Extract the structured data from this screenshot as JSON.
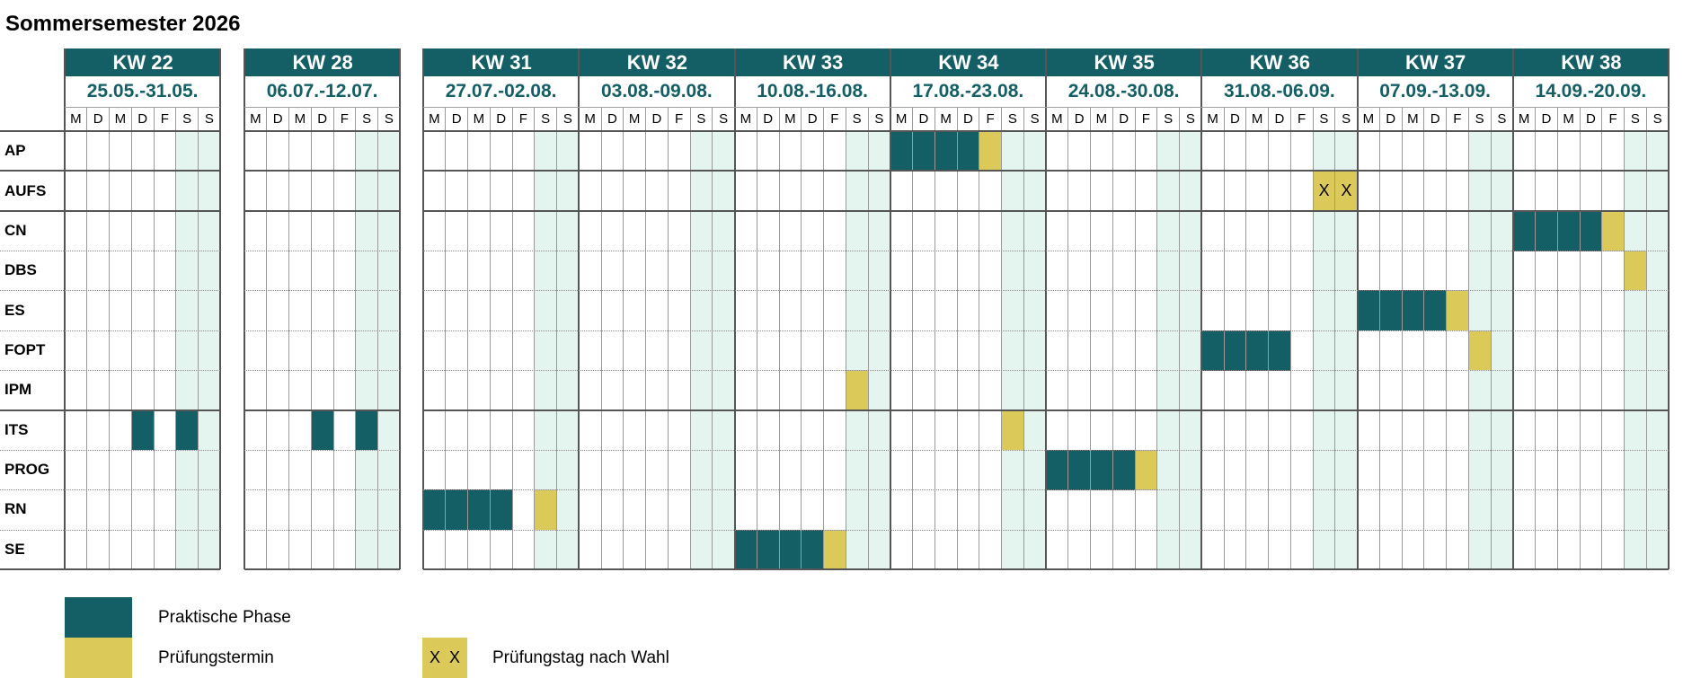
{
  "title": "Sommersemester 2026",
  "colors": {
    "praktisch": "#145f65",
    "pruefung": "#dbc95a",
    "weekend": "#e4f5ef",
    "header": "#145f65"
  },
  "day_labels": [
    "M",
    "D",
    "M",
    "D",
    "F",
    "S",
    "S"
  ],
  "weeks": [
    {
      "kw": "KW 22",
      "dates": "25.05.-31.05."
    },
    {
      "kw": "KW 28",
      "dates": "06.07.-12.07."
    },
    {
      "kw": "KW 31",
      "dates": "27.07.-02.08."
    },
    {
      "kw": "KW 32",
      "dates": "03.08.-09.08."
    },
    {
      "kw": "KW 33",
      "dates": "10.08.-16.08."
    },
    {
      "kw": "KW 34",
      "dates": "17.08.-23.08."
    },
    {
      "kw": "KW 35",
      "dates": "24.08.-30.08."
    },
    {
      "kw": "KW 36",
      "dates": "31.08.-06.09."
    },
    {
      "kw": "KW 37",
      "dates": "07.09.-13.09."
    },
    {
      "kw": "KW 38",
      "dates": "14.09.-20.09."
    }
  ],
  "modules": [
    {
      "name": "AP",
      "cells": {
        "5-0": "p",
        "5-1": "p",
        "5-2": "p",
        "5-3": "p",
        "5-4": "e"
      }
    },
    {
      "name": "AUFS",
      "cells": {
        "7-5": "x",
        "7-6": "x"
      }
    },
    {
      "name": "CN",
      "cells": {
        "9-0": "p",
        "9-1": "p",
        "9-2": "p",
        "9-3": "p",
        "9-4": "e"
      }
    },
    {
      "name": "DBS",
      "cells": {
        "9-5": "e"
      }
    },
    {
      "name": "ES",
      "cells": {
        "8-0": "p",
        "8-1": "p",
        "8-2": "p",
        "8-3": "p",
        "8-4": "e"
      }
    },
    {
      "name": "FOPT",
      "cells": {
        "7-0": "p",
        "7-1": "p",
        "7-2": "p",
        "7-3": "p",
        "8-5": "e"
      }
    },
    {
      "name": "IPM",
      "cells": {
        "4-5": "e"
      }
    },
    {
      "name": "ITS",
      "cells": {
        "0-3": "p",
        "0-5": "p",
        "1-3": "p",
        "1-5": "p",
        "5-5": "e"
      }
    },
    {
      "name": "PROG",
      "cells": {
        "6-0": "p",
        "6-1": "p",
        "6-2": "p",
        "6-3": "p",
        "6-4": "e"
      }
    },
    {
      "name": "RN",
      "cells": {
        "2-0": "p",
        "2-1": "p",
        "2-2": "p",
        "2-3": "p",
        "2-5": "e"
      }
    },
    {
      "name": "SE",
      "cells": {
        "4-0": "p",
        "4-1": "p",
        "4-2": "p",
        "4-3": "p",
        "4-4": "e"
      }
    }
  ],
  "choice_mark": "X",
  "legend": {
    "praktisch_label": "Praktische Phase",
    "pruefung_label": "Prüfungstermin",
    "wahl_marks": "X  X",
    "wahl_label": "Prüfungstag nach Wahl"
  }
}
